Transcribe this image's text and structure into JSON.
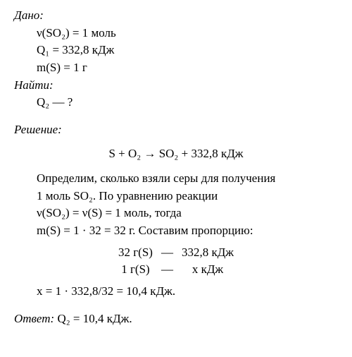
{
  "given": {
    "heading": "Дано:",
    "lines": [
      "ν(SO₂) = 1 моль",
      "Q₁ = 332,8 кДж",
      "m(S) = 1 г"
    ]
  },
  "find": {
    "heading": "Найти:",
    "line": "Q₂ — ?"
  },
  "solution": {
    "heading": "Решение:",
    "equation": "S + O₂ → SO₂ + 332,8 кДж",
    "text1": "Определим, сколько взяли серы для получения",
    "text2": "1 моль SO₂. По уравнению реакции",
    "text3": "ν(SO₂) = ν(S) = 1 моль, тогда",
    "text4": "m(S) = 1 · 32 = 32 г. Составим пропорцию:",
    "proportion": {
      "r1c1": "32 г(S)",
      "r1c2": "—",
      "r1c3": "332,8 кДж",
      "r2c1": "1 г(S)",
      "r2c2": "—",
      "r2c3": "x кДж"
    },
    "calc": "x = 1 · 332,8/32 = 10,4 кДж."
  },
  "answer": {
    "heading": "Ответ: ",
    "value": "Q₂ = 10,4 кДж."
  }
}
